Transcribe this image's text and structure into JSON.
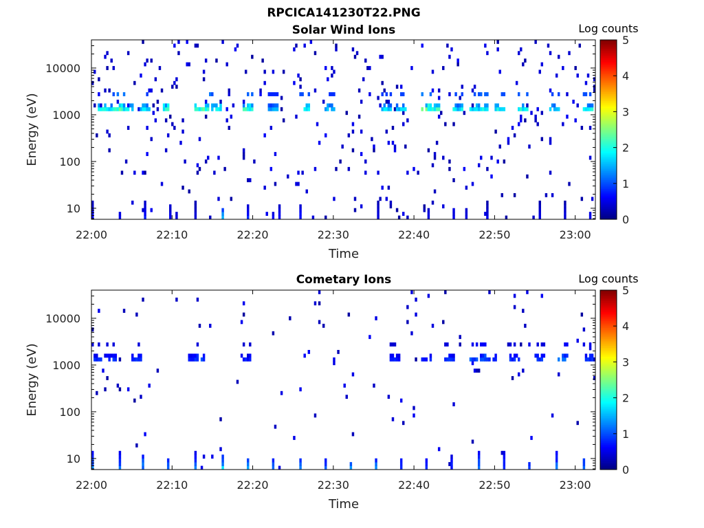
{
  "figure": {
    "title": "RPCICA141230T22.PNG"
  },
  "colormap": {
    "name": "jet",
    "stops": [
      "#000080",
      "#0000ff",
      "#0080ff",
      "#00ffff",
      "#80ff80",
      "#ffff00",
      "#ff8000",
      "#ff0000",
      "#800000"
    ]
  },
  "chart_data": [
    {
      "type": "heatmap",
      "title": "Solar Wind Ions",
      "xlabel": "Time",
      "ylabel": "Energy (eV)",
      "x_ticks": [
        "22:00",
        "22:10",
        "22:20",
        "22:30",
        "22:40",
        "22:50",
        "23:00"
      ],
      "x_range_minutes": [
        0,
        62.5
      ],
      "y_ticks": [
        "10",
        "100",
        "1000",
        "10000"
      ],
      "y_scale": "log",
      "y_range": [
        5.8,
        40000
      ],
      "colorbar": {
        "label": "Log counts",
        "ticks": [
          "0",
          "1",
          "2",
          "3",
          "4",
          "5"
        ],
        "range": [
          0,
          5
        ]
      },
      "pattern": {
        "seed": 11,
        "band_energy": 1300,
        "band_cells": [
          [
            1,
            2.2
          ],
          [
            2,
            2.0
          ],
          [
            3,
            2.4
          ],
          [
            4,
            2.1
          ],
          [
            6,
            1.8
          ],
          [
            9,
            2.3
          ],
          [
            13,
            2.1
          ],
          [
            14,
            2.4
          ],
          [
            15,
            2.0
          ],
          [
            19,
            2.2
          ],
          [
            22,
            1.6
          ],
          [
            26,
            2.0
          ],
          [
            29,
            1.7
          ],
          [
            36,
            1.8
          ],
          [
            38,
            1.9
          ],
          [
            41,
            2.5
          ],
          [
            42,
            2.3
          ],
          [
            45,
            1.9
          ],
          [
            47,
            2.0
          ],
          [
            48,
            2.2
          ],
          [
            50,
            2.0
          ],
          [
            53,
            2.1
          ],
          [
            57,
            1.9
          ],
          [
            61,
            2.0
          ]
        ],
        "band_density": 0.6,
        "band_above_energy": 3000,
        "scatter_density": 0.035,
        "low_columns": [
          [
            0,
            0.6
          ],
          [
            3.5,
            0.5
          ],
          [
            6.6,
            0.7
          ],
          [
            9.8,
            0.6
          ],
          [
            10.6,
            0.5
          ],
          [
            12.8,
            0.5
          ],
          [
            16.4,
            1.4
          ],
          [
            19.4,
            0.8
          ],
          [
            22.5,
            0.6
          ],
          [
            23.2,
            0.6
          ],
          [
            25.8,
            0.7
          ],
          [
            35.6,
            0.5
          ],
          [
            41.8,
            0.5
          ],
          [
            44.8,
            0.6
          ],
          [
            46.6,
            0.5
          ],
          [
            49.2,
            0.5
          ],
          [
            55.6,
            0.5
          ],
          [
            58.8,
            0.5
          ],
          [
            61.8,
            0.6
          ]
        ]
      }
    },
    {
      "type": "heatmap",
      "title": "Cometary Ions",
      "xlabel": "Time",
      "ylabel": "Energy (eV)",
      "x_ticks": [
        "22:00",
        "22:10",
        "22:20",
        "22:30",
        "22:40",
        "22:50",
        "23:00"
      ],
      "x_range_minutes": [
        0,
        62.5
      ],
      "y_ticks": [
        "10",
        "100",
        "1000",
        "10000"
      ],
      "y_scale": "log",
      "y_range": [
        5.8,
        40000
      ],
      "colorbar": {
        "label": "Log counts",
        "ticks": [
          "0",
          "1",
          "2",
          "3",
          "4",
          "5"
        ],
        "range": [
          0,
          5
        ]
      },
      "pattern": {
        "seed": 29,
        "band_energy": 1300,
        "band_cells": [
          [
            0,
            0.9
          ],
          [
            2,
            0.9
          ],
          [
            5,
            0.9
          ],
          [
            12,
            0.9
          ],
          [
            13,
            1.0
          ],
          [
            19,
            0.8
          ],
          [
            37,
            0.8
          ],
          [
            41,
            0.8
          ],
          [
            44,
            0.9
          ],
          [
            47,
            1.1
          ],
          [
            48,
            1.2
          ],
          [
            49,
            0.9
          ],
          [
            52,
            0.9
          ],
          [
            55,
            0.9
          ],
          [
            58,
            1.2
          ],
          [
            61,
            1.0
          ]
        ],
        "band_density": 0.5,
        "band_above_energy": 3000,
        "scatter_density": 0.012,
        "low_columns": [
          [
            0.2,
            1.3
          ],
          [
            3.4,
            1.2
          ],
          [
            6.5,
            1.3
          ],
          [
            9.6,
            1.1
          ],
          [
            12.8,
            1.2
          ],
          [
            16.2,
            1.6
          ],
          [
            19.3,
            1.5
          ],
          [
            22.5,
            1.1
          ],
          [
            25.8,
            1.3
          ],
          [
            29.0,
            1.1
          ],
          [
            32.1,
            1.3
          ],
          [
            35.3,
            1.2
          ],
          [
            38.4,
            1.0
          ],
          [
            41.6,
            0.9
          ],
          [
            44.7,
            0.8
          ],
          [
            48.0,
            1.3
          ],
          [
            51.2,
            1.0
          ],
          [
            54.4,
            0.9
          ],
          [
            57.6,
            1.2
          ],
          [
            61.0,
            1.1
          ]
        ]
      }
    }
  ]
}
